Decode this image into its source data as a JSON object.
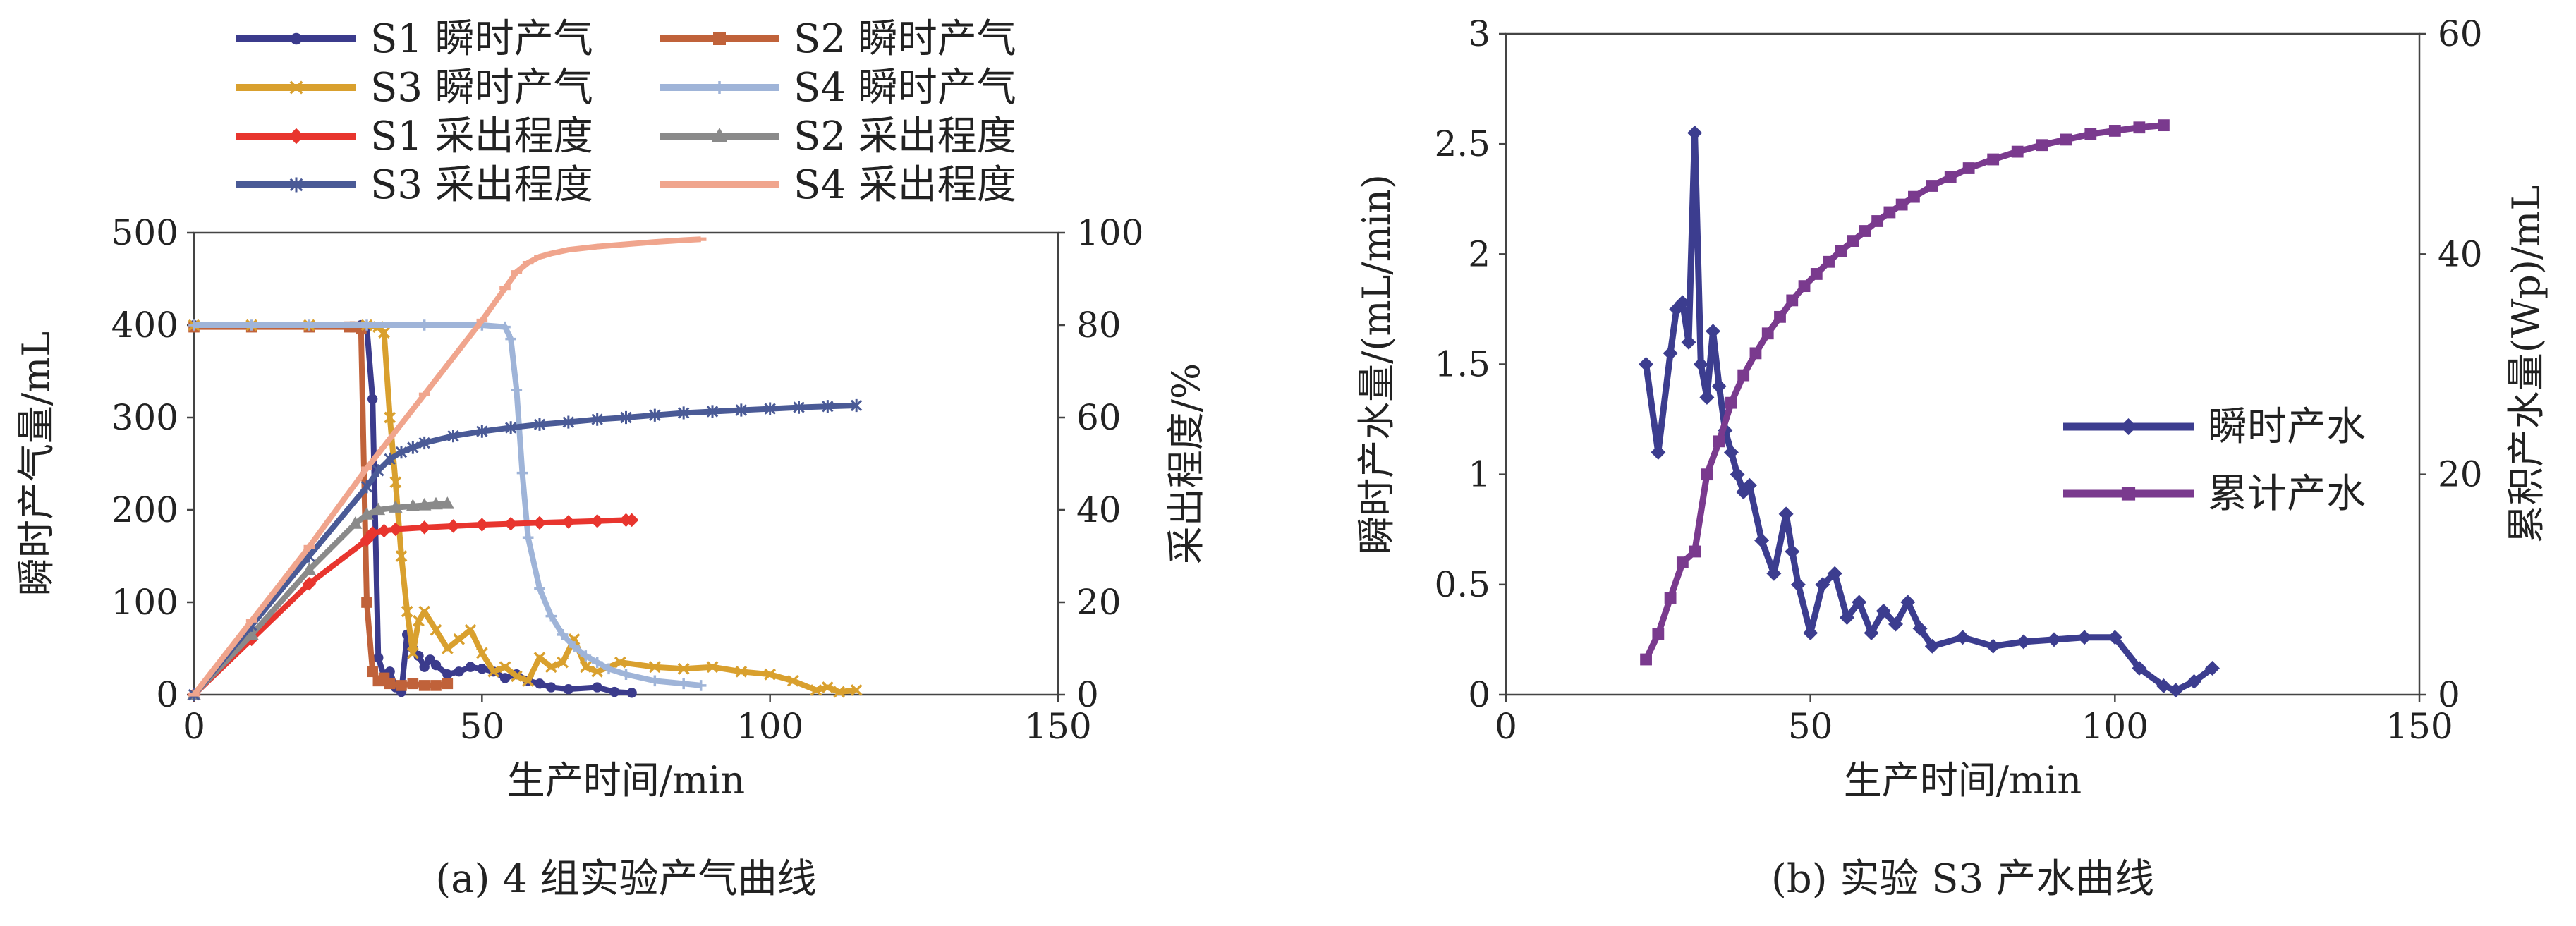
{
  "chart_data": [
    {
      "id": "a",
      "type": "line",
      "caption": "(a) 4 组实验产气曲线",
      "xlabel": "生产时间/min",
      "ylabel": "瞬时产气量/mL",
      "y2label": "采出程度/%",
      "xlim": [
        0,
        150
      ],
      "ylim": [
        0,
        500
      ],
      "y2lim": [
        0,
        100
      ],
      "xticks": [
        "0",
        "50",
        "100",
        "150"
      ],
      "yticks": [
        "0",
        "100",
        "200",
        "300",
        "400",
        "500"
      ],
      "y2ticks": [
        "0",
        "20",
        "40",
        "60",
        "80",
        "100"
      ],
      "legend_position": "top",
      "series": [
        {
          "name": "S1 瞬时产气",
          "axis": "left",
          "color": "#3b3b8c",
          "marker": "circle",
          "x": [
            0,
            29,
            30,
            31,
            32,
            33,
            34,
            35,
            36,
            37,
            38,
            39,
            40,
            41,
            42,
            44,
            46,
            48,
            50,
            52,
            54,
            56,
            58,
            60,
            62,
            65,
            70,
            73,
            76
          ],
          "y": [
            400,
            400,
            398,
            320,
            40,
            20,
            25,
            8,
            3,
            65,
            50,
            42,
            30,
            38,
            32,
            22,
            25,
            30,
            28,
            25,
            18,
            22,
            15,
            12,
            8,
            6,
            8,
            3,
            2
          ]
        },
        {
          "name": "S2 瞬时产气",
          "axis": "left",
          "color": "#c0623a",
          "marker": "square",
          "x": [
            0,
            10,
            20,
            27,
            28,
            29,
            30,
            31,
            32,
            33,
            34,
            36,
            38,
            40,
            42,
            44
          ],
          "y": [
            398,
            398,
            398,
            398,
            398,
            396,
            100,
            25,
            15,
            18,
            12,
            10,
            12,
            10,
            10,
            12
          ]
        },
        {
          "name": "S3 瞬时产气",
          "axis": "left",
          "color": "#d9a02e",
          "marker": "x",
          "x": [
            0,
            10,
            20,
            30,
            32,
            33,
            34,
            35,
            36,
            37,
            38,
            39,
            40,
            42,
            44,
            46,
            48,
            50,
            52,
            54,
            56,
            58,
            60,
            62,
            64,
            66,
            68,
            70,
            74,
            80,
            85,
            90,
            95,
            100,
            104,
            108,
            110,
            112,
            115
          ],
          "y": [
            400,
            400,
            400,
            400,
            398,
            392,
            300,
            230,
            150,
            90,
            45,
            80,
            90,
            70,
            50,
            60,
            70,
            45,
            25,
            30,
            20,
            15,
            40,
            30,
            35,
            60,
            30,
            25,
            35,
            30,
            28,
            30,
            25,
            22,
            15,
            5,
            8,
            3,
            5
          ]
        },
        {
          "name": "S4 瞬时产气",
          "axis": "left",
          "color": "#9fb4d8",
          "marker": "plus",
          "x": [
            0,
            10,
            20,
            30,
            40,
            50,
            54,
            55,
            56,
            57,
            58,
            60,
            62,
            64,
            66,
            68,
            70,
            72,
            75,
            80,
            85,
            88
          ],
          "y": [
            400,
            400,
            400,
            400,
            400,
            400,
            398,
            385,
            330,
            240,
            170,
            115,
            85,
            65,
            52,
            42,
            35,
            28,
            22,
            15,
            12,
            10
          ]
        },
        {
          "name": "S1 采出程度",
          "axis": "right",
          "color": "#e8352e",
          "marker": "diamond",
          "x": [
            0,
            10,
            20,
            30,
            31,
            33,
            35,
            40,
            45,
            50,
            55,
            60,
            65,
            70,
            75,
            76
          ],
          "y": [
            0,
            12,
            24,
            33.5,
            35,
            35.5,
            35.8,
            36.2,
            36.5,
            36.8,
            37,
            37.2,
            37.4,
            37.6,
            37.8,
            37.8
          ]
        },
        {
          "name": "S2 采出程度",
          "axis": "right",
          "color": "#8a8a8a",
          "marker": "triangle",
          "x": [
            0,
            10,
            20,
            28,
            30,
            32,
            35,
            38,
            40,
            42,
            44
          ],
          "y": [
            0,
            13,
            27,
            37,
            39,
            40,
            40.5,
            40.8,
            41,
            41.2,
            41.3
          ]
        },
        {
          "name": "S3 采出程度",
          "axis": "right",
          "color": "#4a5a96",
          "marker": "star",
          "x": [
            0,
            10,
            20,
            30,
            32,
            34,
            36,
            38,
            40,
            45,
            50,
            55,
            60,
            65,
            70,
            75,
            80,
            85,
            90,
            95,
            100,
            105,
            110,
            115
          ],
          "y": [
            0,
            15,
            30,
            45,
            48.5,
            51,
            52.5,
            53.5,
            54.5,
            56,
            57,
            57.8,
            58.5,
            59,
            59.6,
            60,
            60.5,
            61,
            61.3,
            61.6,
            61.9,
            62.2,
            62.4,
            62.6
          ]
        },
        {
          "name": "S4 采出程度",
          "axis": "right",
          "color": "#f0a58d",
          "marker": "dash",
          "x": [
            0,
            10,
            20,
            30,
            40,
            50,
            54,
            56,
            58,
            60,
            62,
            65,
            70,
            75,
            80,
            85,
            88
          ],
          "y": [
            0,
            16,
            32,
            49,
            65,
            81,
            88,
            91.5,
            93.5,
            94.8,
            95.5,
            96.3,
            97,
            97.5,
            98,
            98.4,
            98.6
          ]
        }
      ]
    },
    {
      "id": "b",
      "type": "line",
      "caption": "(b) 实验 S3 产水曲线",
      "xlabel": "生产时间/min",
      "ylabel": "瞬时产水量/(mL/min)",
      "y2label": "累积产水量(Wp)/mL",
      "xlim": [
        0,
        150
      ],
      "ylim": [
        0,
        3
      ],
      "y2lim": [
        0,
        60
      ],
      "xticks": [
        "0",
        "50",
        "100",
        "150"
      ],
      "yticks": [
        "0",
        "0.5",
        "1",
        "1.5",
        "2",
        "2.5",
        "3"
      ],
      "y2ticks": [
        "0",
        "20",
        "40",
        "60"
      ],
      "legend_position": "right",
      "series": [
        {
          "name": "瞬时产水",
          "axis": "left",
          "color": "#3c3d8f",
          "marker": "diamond",
          "x": [
            23,
            25,
            27,
            28,
            29,
            30,
            31,
            32,
            33,
            34,
            35,
            36,
            37,
            38,
            39,
            40,
            42,
            44,
            46,
            47,
            48,
            50,
            52,
            54,
            56,
            58,
            60,
            62,
            64,
            66,
            68,
            70,
            75,
            80,
            85,
            90,
            95,
            100,
            104,
            108,
            110,
            113,
            116
          ],
          "y": [
            1.5,
            1.1,
            1.55,
            1.75,
            1.78,
            1.6,
            2.55,
            1.5,
            1.35,
            1.65,
            1.4,
            1.2,
            1.1,
            1.0,
            0.92,
            0.95,
            0.7,
            0.55,
            0.82,
            0.65,
            0.5,
            0.28,
            0.5,
            0.55,
            0.35,
            0.42,
            0.28,
            0.38,
            0.32,
            0.42,
            0.3,
            0.22,
            0.26,
            0.22,
            0.24,
            0.25,
            0.26,
            0.26,
            0.12,
            0.04,
            0.02,
            0.06,
            0.12
          ]
        },
        {
          "name": "累计产水",
          "axis": "right",
          "color": "#7a3a8e",
          "marker": "square",
          "x": [
            23,
            25,
            27,
            29,
            31,
            33,
            35,
            37,
            39,
            41,
            43,
            45,
            47,
            49,
            51,
            53,
            55,
            57,
            59,
            61,
            63,
            65,
            67,
            70,
            73,
            76,
            80,
            84,
            88,
            92,
            96,
            100,
            104,
            108
          ],
          "y": [
            3.2,
            5.5,
            8.8,
            12,
            13,
            20,
            23,
            26.5,
            29,
            31,
            32.8,
            34.3,
            35.8,
            37.1,
            38.2,
            39.3,
            40.3,
            41.2,
            42.1,
            43,
            43.8,
            44.5,
            45.2,
            46.2,
            47,
            47.8,
            48.6,
            49.3,
            49.9,
            50.4,
            50.9,
            51.2,
            51.5,
            51.7
          ]
        }
      ]
    }
  ]
}
